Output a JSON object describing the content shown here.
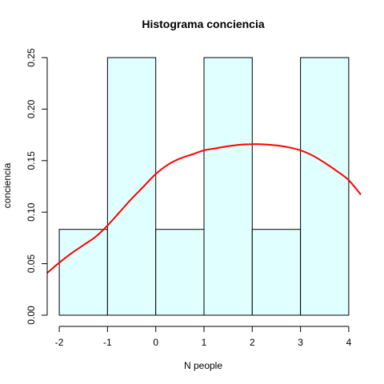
{
  "chart_data": {
    "type": "bar",
    "title": "Histograma  conciencia",
    "xlabel": "N people",
    "ylabel": "conciencia",
    "bins": [
      {
        "start": -2,
        "end": -1,
        "density": 0.0833
      },
      {
        "start": -1,
        "end": 0,
        "density": 0.25
      },
      {
        "start": 0,
        "end": 1,
        "density": 0.0833
      },
      {
        "start": 1,
        "end": 2,
        "density": 0.25
      },
      {
        "start": 2,
        "end": 3,
        "density": 0.0833
      },
      {
        "start": 3,
        "end": 4,
        "density": 0.25
      }
    ],
    "x_ticks": [
      -2,
      -1,
      0,
      1,
      2,
      3,
      4
    ],
    "x_tick_labels": [
      "-2",
      "-1",
      "0",
      "1",
      "2",
      "3",
      "4"
    ],
    "y_ticks": [
      0,
      0.05,
      0.1,
      0.15,
      0.2,
      0.25
    ],
    "y_tick_labels": [
      "0.00",
      "0.05",
      "0.10",
      "0.15",
      "0.20",
      "0.25"
    ],
    "xlim": [
      -2.25,
      4.25
    ],
    "ylim": [
      0,
      0.25
    ],
    "density_curve": {
      "x": [
        -2.25,
        -2,
        -1.75,
        -1.5,
        -1.25,
        -1,
        -0.75,
        -0.5,
        -0.25,
        0,
        0.25,
        0.5,
        0.75,
        1,
        1.25,
        1.5,
        1.75,
        2,
        2.25,
        2.5,
        2.75,
        3,
        3.25,
        3.5,
        3.75,
        4,
        4.25
      ],
      "y": [
        0.041,
        0.051,
        0.06,
        0.068,
        0.076,
        0.087,
        0.1,
        0.113,
        0.125,
        0.137,
        0.146,
        0.152,
        0.156,
        0.16,
        0.162,
        0.164,
        0.1655,
        0.166,
        0.1658,
        0.1648,
        0.163,
        0.16,
        0.155,
        0.148,
        0.14,
        0.131,
        0.117
      ]
    },
    "colors": {
      "bar_fill": "#e0ffff",
      "bar_stroke": "#000000",
      "curve": "#ff0000"
    },
    "grid": false,
    "legend": "none"
  }
}
